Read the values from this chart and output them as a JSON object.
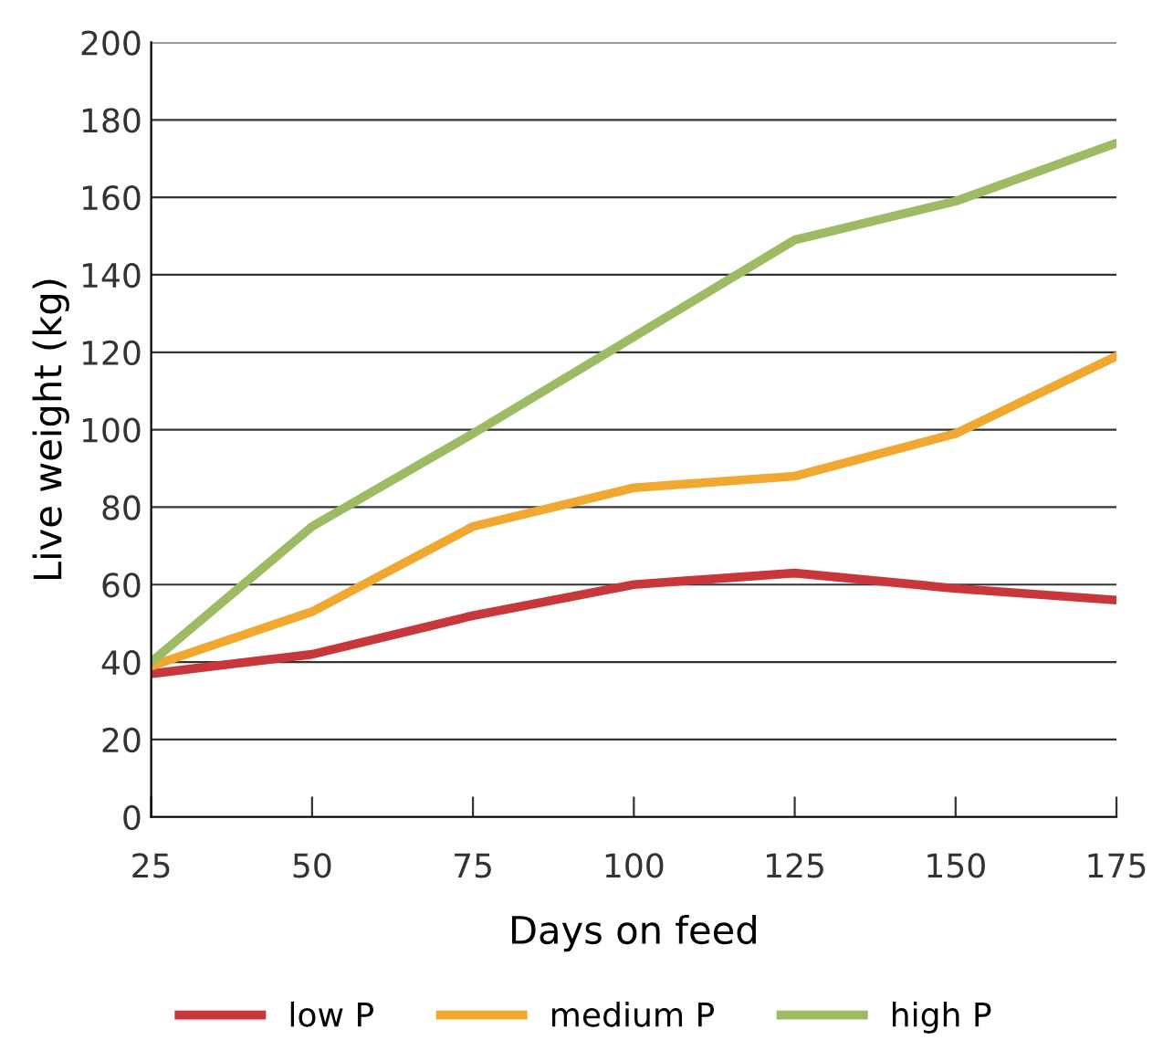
{
  "chart_data": {
    "type": "line",
    "xlabel": "Days on feed",
    "ylabel": "Live weight (kg)",
    "x": [
      25,
      50,
      75,
      100,
      125,
      150,
      175
    ],
    "series": [
      {
        "name": "low P",
        "color": "#c8373a",
        "values": [
          37,
          42,
          52,
          60,
          63,
          59,
          56
        ]
      },
      {
        "name": "medium P",
        "color": "#f0a830",
        "values": [
          39,
          53,
          75,
          85,
          88,
          99,
          119
        ]
      },
      {
        "name": "high P",
        "color": "#9dbb62",
        "values": [
          40,
          75,
          99,
          124,
          149,
          159,
          174
        ]
      }
    ],
    "xlim": [
      25,
      175
    ],
    "xticks": [
      25,
      50,
      75,
      100,
      125,
      150,
      175
    ],
    "ylim": [
      0,
      200
    ],
    "yticks": [
      0,
      20,
      40,
      60,
      80,
      100,
      120,
      140,
      160,
      180,
      200
    ],
    "grid": "y",
    "legend": "bottom",
    "marker": "none",
    "line_style": "solid"
  }
}
